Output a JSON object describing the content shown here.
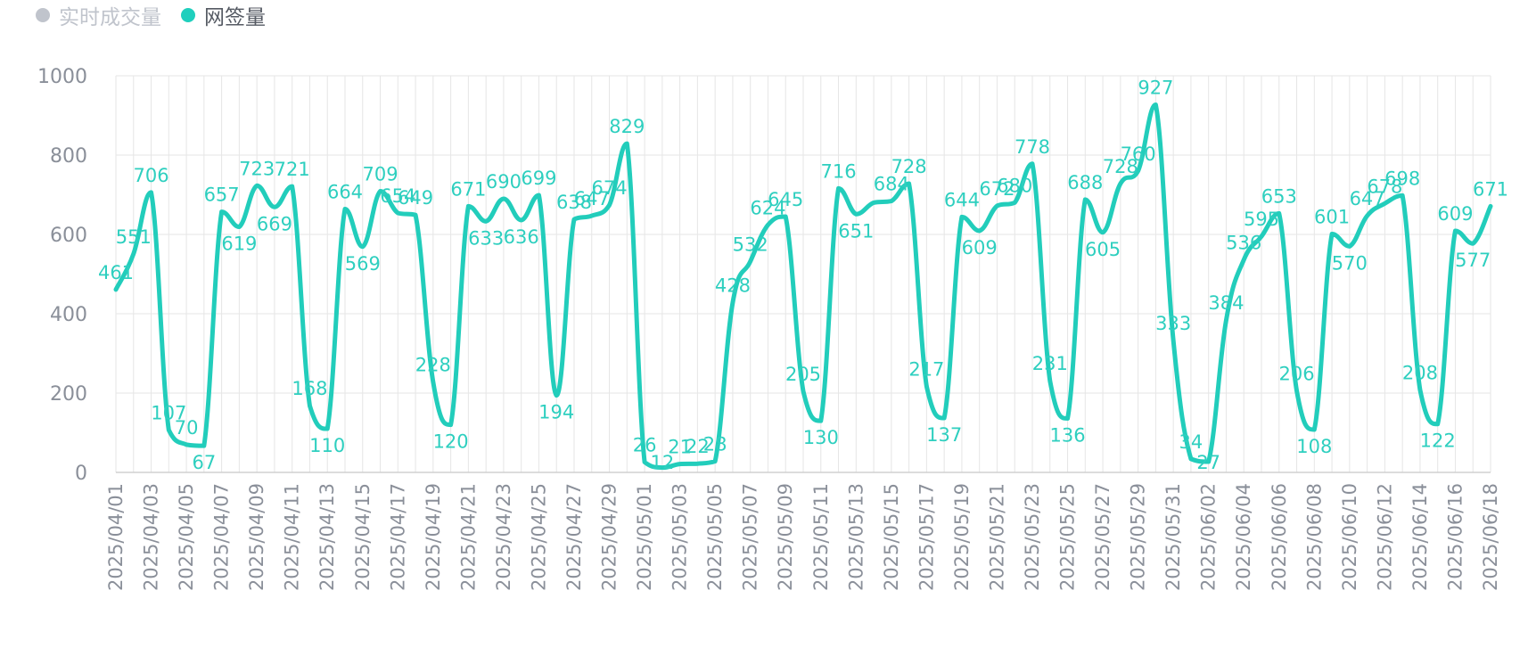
{
  "legend": {
    "items": [
      {
        "label": "实时成交量",
        "active": false,
        "color": "#c0c4cc"
      },
      {
        "label": "网签量",
        "active": true,
        "color": "#1fcfbd"
      }
    ]
  },
  "chart_data": {
    "type": "line",
    "ylim": [
      0,
      1000
    ],
    "yticks": [
      0,
      200,
      400,
      600,
      800,
      1000
    ],
    "grid": true,
    "legend_position": "top-left",
    "colors": {
      "line": "#22cdbb",
      "grid": "#e6e6e6",
      "axis": "#d0d0d0"
    },
    "x": [
      "2025/04/01",
      "2025/04/02",
      "2025/04/03",
      "2025/04/04",
      "2025/04/05",
      "2025/04/06",
      "2025/04/07",
      "2025/04/08",
      "2025/04/09",
      "2025/04/10",
      "2025/04/11",
      "2025/04/12",
      "2025/04/13",
      "2025/04/14",
      "2025/04/15",
      "2025/04/16",
      "2025/04/17",
      "2025/04/18",
      "2025/04/19",
      "2025/04/20",
      "2025/04/21",
      "2025/04/22",
      "2025/04/23",
      "2025/04/24",
      "2025/04/25",
      "2025/04/26",
      "2025/04/27",
      "2025/04/28",
      "2025/04/29",
      "2025/04/30",
      "2025/05/01",
      "2025/05/02",
      "2025/05/03",
      "2025/05/04",
      "2025/05/05",
      "2025/05/06",
      "2025/05/07",
      "2025/05/08",
      "2025/05/09",
      "2025/05/10",
      "2025/05/11",
      "2025/05/12",
      "2025/05/13",
      "2025/05/14",
      "2025/05/15",
      "2025/05/16",
      "2025/05/17",
      "2025/05/18",
      "2025/05/19",
      "2025/05/20",
      "2025/05/21",
      "2025/05/22",
      "2025/05/23",
      "2025/05/24",
      "2025/05/25",
      "2025/05/26",
      "2025/05/27",
      "2025/05/28",
      "2025/05/29",
      "2025/05/30",
      "2025/05/31",
      "2025/06/01",
      "2025/06/02",
      "2025/06/03",
      "2025/06/04",
      "2025/06/05",
      "2025/06/06",
      "2025/06/07",
      "2025/06/08",
      "2025/06/09",
      "2025/06/10",
      "2025/06/11",
      "2025/06/12",
      "2025/06/13",
      "2025/06/14",
      "2025/06/15",
      "2025/06/16",
      "2025/06/17",
      "2025/06/18"
    ],
    "xtick_labels": [
      "2025/04/01",
      "2025/04/03",
      "2025/04/05",
      "2025/04/07",
      "2025/04/09",
      "2025/04/11",
      "2025/04/13",
      "2025/04/15",
      "2025/04/17",
      "2025/04/19",
      "2025/04/21",
      "2025/04/23",
      "2025/04/25",
      "2025/04/27",
      "2025/04/29",
      "2025/05/01",
      "2025/05/03",
      "2025/05/05",
      "2025/05/07",
      "2025/05/09",
      "2025/05/11",
      "2025/05/13",
      "2025/05/15",
      "2025/05/17",
      "2025/05/19",
      "2025/05/21",
      "2025/05/23",
      "2025/05/25",
      "2025/05/27",
      "2025/05/29",
      "2025/05/31",
      "2025/06/02",
      "2025/06/04",
      "2025/06/06",
      "2025/06/08",
      "2025/06/10",
      "2025/06/12",
      "2025/06/14",
      "2025/06/16",
      "2025/06/18"
    ],
    "series": [
      {
        "name": "网签量",
        "values": [
          461,
          551,
          706,
          107,
          70,
          67,
          657,
          619,
          723,
          669,
          721,
          168,
          110,
          664,
          569,
          709,
          654,
          649,
          228,
          120,
          671,
          633,
          690,
          636,
          699,
          194,
          638,
          647,
          674,
          829,
          26,
          12,
          21,
          22,
          28,
          428,
          532,
          624,
          645,
          205,
          130,
          716,
          651,
          680,
          684,
          728,
          217,
          137,
          644,
          609,
          672,
          680,
          778,
          231,
          136,
          688,
          605,
          728,
          760,
          927,
          333,
          34,
          27,
          384,
          536,
          595,
          653,
          206,
          108,
          601,
          570,
          647,
          678,
          698,
          208,
          122,
          609,
          577,
          671
        ],
        "labels_shown": [
          "461",
          "551",
          "706",
          "107",
          "70",
          "67",
          "657",
          "619",
          "723",
          "669",
          "721",
          "168",
          "110",
          "664",
          "569",
          "709",
          "654",
          "649",
          "228",
          "120",
          "671",
          "633",
          "690",
          "636",
          "699",
          "194",
          "638",
          "647",
          "674",
          "829",
          "26",
          "12",
          "21",
          "22",
          "28",
          "428",
          "532",
          "624",
          "645",
          "205",
          "130",
          "716",
          "651",
          "",
          "684",
          "728",
          "217",
          "137",
          "644",
          "609",
          "672",
          "680",
          "778",
          "231",
          "136",
          "688",
          "605",
          "728",
          "760",
          "927",
          "333",
          "34",
          "27",
          "384",
          "536",
          "595",
          "653",
          "206",
          "108",
          "601",
          "570",
          "647",
          "678",
          "698",
          "208",
          "122",
          "609",
          "577",
          "671"
        ]
      }
    ]
  }
}
